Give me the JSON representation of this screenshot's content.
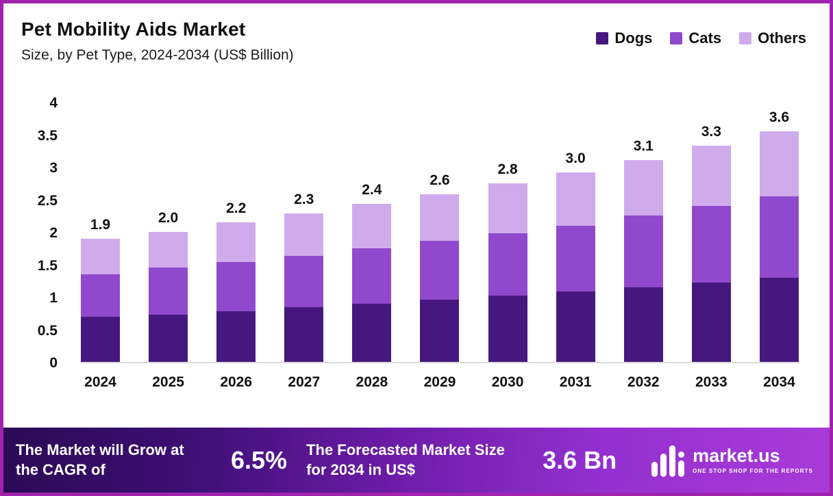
{
  "chart_data": {
    "type": "bar",
    "stacked": true,
    "title": "Pet Mobility Aids Market",
    "subtitle": "Size, by Pet Type, 2024-2034 (US$ Billion)",
    "categories": [
      "2024",
      "2025",
      "2026",
      "2027",
      "2028",
      "2029",
      "2030",
      "2031",
      "2032",
      "2033",
      "2034"
    ],
    "series": [
      {
        "name": "Dogs",
        "color": "#46187f",
        "values": [
          0.7,
          0.73,
          0.78,
          0.84,
          0.9,
          0.96,
          1.02,
          1.08,
          1.15,
          1.22,
          1.3
        ]
      },
      {
        "name": "Cats",
        "color": "#9049cc",
        "values": [
          0.65,
          0.72,
          0.76,
          0.79,
          0.85,
          0.9,
          0.96,
          1.02,
          1.1,
          1.18,
          1.25
        ]
      },
      {
        "name": "Others",
        "color": "#d0abec",
        "values": [
          0.55,
          0.55,
          0.61,
          0.65,
          0.68,
          0.72,
          0.77,
          0.82,
          0.86,
          0.93,
          1.0
        ]
      }
    ],
    "totals": [
      "1.9",
      "2.0",
      "2.2",
      "2.3",
      "2.4",
      "2.6",
      "2.8",
      "3.0",
      "3.1",
      "3.3",
      "3.6"
    ],
    "ylim": [
      0,
      4
    ],
    "yticks": [
      "4",
      "3.5",
      "3",
      "2.5",
      "2",
      "1.5",
      "1",
      "0.5",
      "0"
    ],
    "legend_position": "top-right",
    "grid": false
  },
  "footer": {
    "cagr_label": "The Market will Grow at the CAGR of",
    "cagr_value": "6.5%",
    "forecast_label": "The Forecasted Market Size for 2034 in US$",
    "forecast_value": "3.6 Bn",
    "brand_name": "market.us",
    "brand_tagline": "ONE STOP SHOP FOR THE REPORTS"
  },
  "colors": {
    "border": "#a023ae",
    "dogs": "#46187f",
    "cats": "#9049cc",
    "others": "#d0abec"
  }
}
